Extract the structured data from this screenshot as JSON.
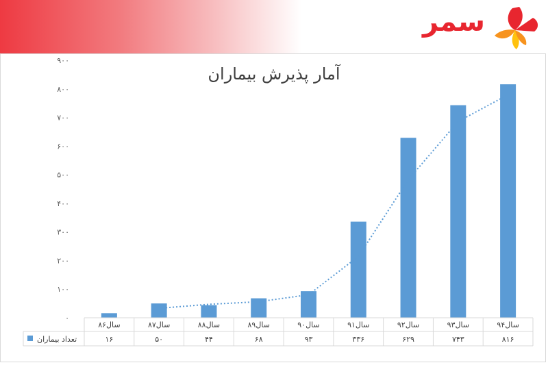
{
  "brand": {
    "name": "سمر",
    "primary_color": "#e8262f",
    "logo_colors": [
      "#e8262f",
      "#f7931e",
      "#ffc20e"
    ]
  },
  "chart_data": {
    "type": "bar",
    "title": "آمار پذیرش بیماران",
    "categories": [
      "سال۸۶",
      "سال۸۷",
      "سال۸۸",
      "سال۸۹",
      "سال۹۰",
      "سال۹۱",
      "سال۹۲",
      "سال۹۳",
      "سال۹۴"
    ],
    "series": [
      {
        "name": "تعداد بیماران",
        "values": [
          16,
          50,
          44,
          68,
          93,
          336,
          629,
          743,
          816
        ],
        "value_labels": [
          "۱۶",
          "۵۰",
          "۴۴",
          "۶۸",
          "۹۳",
          "۳۳۶",
          "۶۲۹",
          "۷۴۳",
          "۸۱۶"
        ],
        "color": "#5b9bd5"
      }
    ],
    "trendline": {
      "type": "moving-average",
      "period": 2,
      "style": "dotted",
      "color": "#5b9bd5"
    },
    "ylim": [
      0,
      900
    ],
    "yticks": [
      0,
      100,
      200,
      300,
      400,
      500,
      600,
      700,
      800,
      900
    ],
    "ytick_labels": [
      "۰",
      "۱۰۰",
      "۲۰۰",
      "۳۰۰",
      "۴۰۰",
      "۵۰۰",
      "۶۰۰",
      "۷۰۰",
      "۸۰۰",
      "۹۰۰"
    ],
    "grid": false,
    "data_table": true,
    "legend_placement": "data-table-left"
  }
}
